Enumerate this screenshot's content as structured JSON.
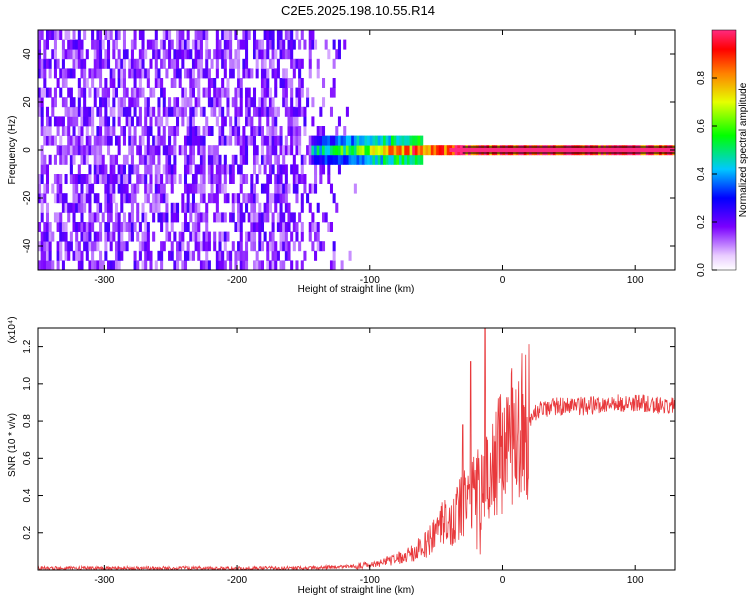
{
  "figure": {
    "title": "C2E5.2025.198.10.55.R14"
  },
  "chart_data": [
    {
      "type": "heatmap",
      "xlabel": "Height of straight line (km)",
      "ylabel": "Frequency (Hz)",
      "xlim": [
        -350,
        130
      ],
      "ylim": [
        -50,
        50
      ],
      "xticks": [
        -300,
        -200,
        -100,
        0,
        100
      ],
      "xtick_labels": [
        "-300",
        "-200",
        "-100",
        "0",
        "100"
      ],
      "yticks": [
        -40,
        -20,
        0,
        20,
        40
      ],
      "ytick_labels": [
        "-40",
        "-20",
        "0",
        "20",
        "40"
      ],
      "colorbar": {
        "label": "Normalized spectral amplitude",
        "range": [
          0,
          1
        ],
        "ticks": [
          0.0,
          0.2,
          0.4,
          0.6,
          0.8
        ],
        "tick_labels": [
          "0.0",
          "0.2",
          "0.4",
          "0.6",
          "0.8"
        ],
        "colormap": "rainbow"
      },
      "features": {
        "noise_region_x": [
          -350,
          -110
        ],
        "noise_level": 0.15,
        "signal_onset_x": -145,
        "signal_frequency_hz": 0,
        "signal_level_after_onset": 1.0
      }
    },
    {
      "type": "line",
      "xlabel": "Height of straight line (km)",
      "ylabel": "SNR (10 * v/v)",
      "y_multiplier": "(x10⁴)",
      "xlim": [
        -350,
        130
      ],
      "ylim": [
        0,
        1.3
      ],
      "xticks": [
        -300,
        -200,
        -100,
        0,
        100
      ],
      "xtick_labels": [
        "-300",
        "-200",
        "-100",
        "0",
        "100"
      ],
      "yticks": [
        0.2,
        0.4,
        0.6,
        0.8,
        1.0,
        1.2
      ],
      "ytick_labels": [
        "0.2",
        "0.4",
        "0.6",
        "0.8",
        "1.0",
        "1.2"
      ],
      "series": [
        {
          "color": "#e8393c",
          "x": [
            -350,
            -200,
            -150,
            -110,
            -90,
            -70,
            -55,
            -45,
            -35,
            -25,
            -15,
            -5,
            5,
            15,
            25,
            40,
            60,
            80,
            100,
            115,
            130
          ],
          "y": [
            0.01,
            0.01,
            0.01,
            0.02,
            0.04,
            0.08,
            0.16,
            0.24,
            0.3,
            0.38,
            0.45,
            0.58,
            0.7,
            0.78,
            0.85,
            0.88,
            0.88,
            0.89,
            0.9,
            0.89,
            0.88
          ]
        }
      ],
      "spikes": [
        {
          "x": -13,
          "y": 1.3
        },
        {
          "x": -24,
          "y": 1.12
        },
        {
          "x": -30,
          "y": 0.78
        }
      ]
    }
  ]
}
